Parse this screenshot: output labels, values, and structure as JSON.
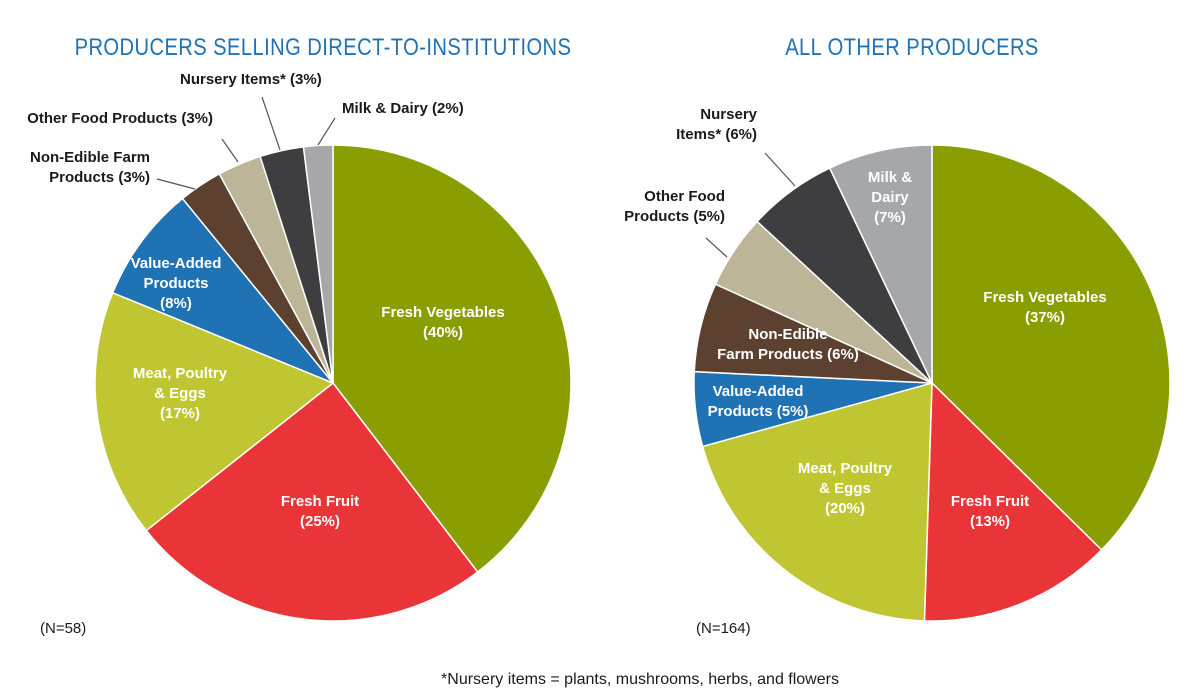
{
  "colors": {
    "fresh_vegetables": "#8a9e02",
    "fresh_fruit": "#e93438",
    "meat_poultry_eggs": "#c0c631",
    "value_added": "#1f72b3",
    "non_edible": "#5c4130",
    "other_food": "#bdb597",
    "nursery": "#3e3e40",
    "milk_dairy": "#a6a7aa",
    "title": "#1f72b3"
  },
  "chart_data": [
    {
      "type": "pie",
      "title": "PRODUCERS SELLING DIRECT-TO-INSTITUTIONS",
      "n_label": "(N=58)",
      "start_angle_deg": 0,
      "direction": "clockwise",
      "slices": [
        {
          "name": "Fresh Vegetables",
          "value": 40,
          "color": "#8a9e02",
          "label_lines": [
            "Fresh Vegetables",
            "(40%)"
          ],
          "label_color": "#ffffff"
        },
        {
          "name": "Fresh Fruit",
          "value": 25,
          "color": "#e93438",
          "label_lines": [
            "Fresh Fruit",
            "(25%)"
          ],
          "label_color": "#ffffff"
        },
        {
          "name": "Meat, Poultry & Eggs",
          "value": 17,
          "color": "#c0c631",
          "label_lines": [
            "Meat, Poultry",
            "& Eggs",
            "(17%)"
          ],
          "label_color": "#ffffff"
        },
        {
          "name": "Value-Added Products",
          "value": 8,
          "color": "#1f72b3",
          "label_lines": [
            "Value-Added",
            "Products",
            "(8%)"
          ],
          "label_color": "#ffffff"
        },
        {
          "name": "Non-Edible Farm Products",
          "value": 3,
          "color": "#5c4130",
          "label_lines": [
            "Non-Edible Farm",
            "Products (3%)"
          ],
          "label_outside": true
        },
        {
          "name": "Other Food Products",
          "value": 3,
          "color": "#bdb597",
          "label_lines": [
            "Other Food Products (3%)"
          ],
          "label_outside": true
        },
        {
          "name": "Nursery Items*",
          "value": 3,
          "color": "#3e3e40",
          "label_lines": [
            "Nursery Items* (3%)"
          ],
          "label_outside": true
        },
        {
          "name": "Milk & Dairy",
          "value": 2,
          "color": "#a6a7aa",
          "label_lines": [
            "Milk & Dairy (2%)"
          ],
          "label_outside": true
        }
      ]
    },
    {
      "type": "pie",
      "title": "ALL OTHER PRODUCERS",
      "n_label": "(N=164)",
      "start_angle_deg": 0,
      "direction": "clockwise",
      "slices": [
        {
          "name": "Fresh Vegetables",
          "value": 37,
          "color": "#8a9e02",
          "label_lines": [
            "Fresh Vegetables",
            "(37%)"
          ],
          "label_color": "#ffffff"
        },
        {
          "name": "Fresh Fruit",
          "value": 13,
          "color": "#e93438",
          "label_lines": [
            "Fresh Fruit",
            "(13%)"
          ],
          "label_color": "#ffffff"
        },
        {
          "name": "Meat, Poultry & Eggs",
          "value": 20,
          "color": "#c0c631",
          "label_lines": [
            "Meat, Poultry",
            "& Eggs",
            "(20%)"
          ],
          "label_color": "#ffffff"
        },
        {
          "name": "Value-Added Products",
          "value": 5,
          "color": "#1f72b3",
          "label_lines": [
            "Value-Added",
            "Products (5%)"
          ],
          "label_color": "#ffffff"
        },
        {
          "name": "Non-Edible Farm Products",
          "value": 6,
          "color": "#5c4130",
          "label_lines": [
            "Non-Edible",
            "Farm Products (6%)"
          ],
          "label_color": "#ffffff"
        },
        {
          "name": "Other Food Products",
          "value": 5,
          "color": "#bdb597",
          "label_lines": [
            "Other Food",
            "Products (5%)"
          ],
          "label_outside": true
        },
        {
          "name": "Nursery Items*",
          "value": 6,
          "color": "#3e3e40",
          "label_lines": [
            "Nursery",
            "Items* (6%)"
          ],
          "label_outside": true
        },
        {
          "name": "Milk & Dairy",
          "value": 7,
          "color": "#a6a7aa",
          "label_lines": [
            "Milk &",
            "Dairy",
            "(7%)"
          ],
          "label_color": "#ffffff"
        }
      ]
    }
  ],
  "footnote": "*Nursery items = plants, mushrooms, herbs, and flowers"
}
